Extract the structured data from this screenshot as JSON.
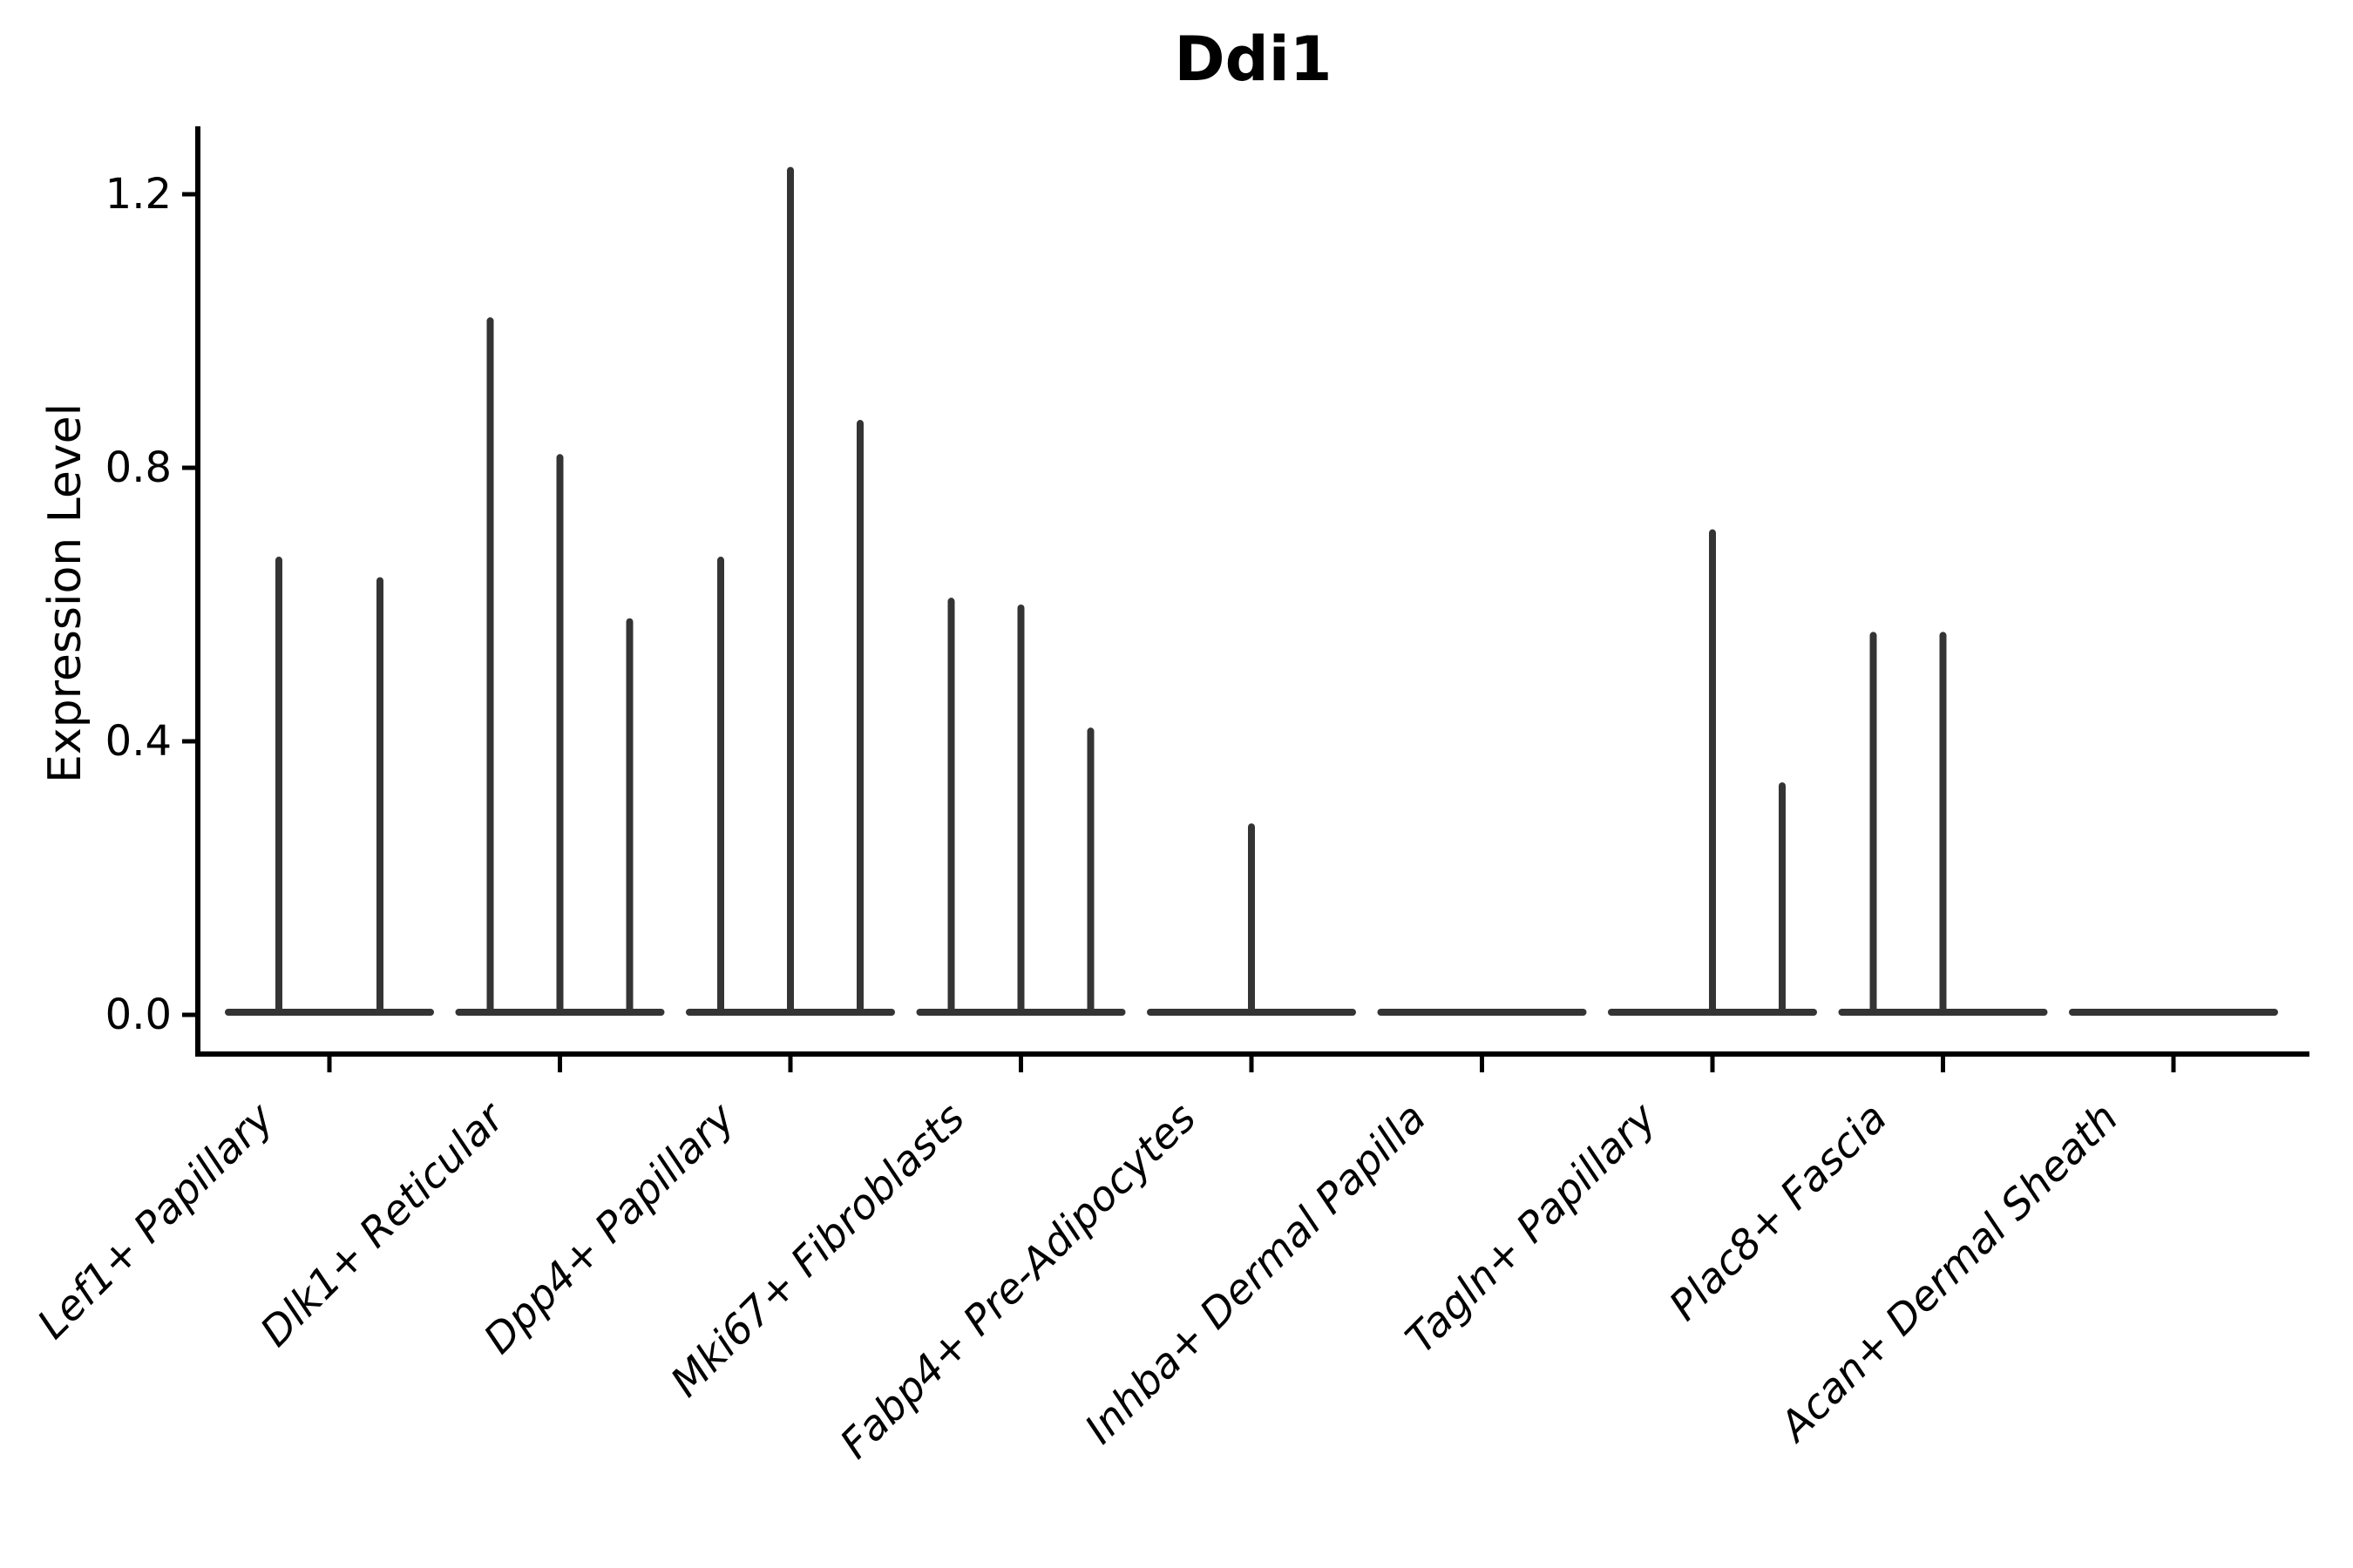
{
  "figure": {
    "background": "#ffffff"
  },
  "colors": {
    "violin_line": "#343434",
    "axis": "#000000",
    "text": "#000000"
  },
  "chart_data": {
    "type": "violin",
    "title": "Ddi1",
    "xlabel": "",
    "ylabel": "Expression Level",
    "ylim": [
      0,
      1.3
    ],
    "yticks": [
      0.0,
      0.4,
      0.8,
      1.2
    ],
    "ytick_labels": [
      "0.0",
      "0.4",
      "0.8",
      "1.2"
    ],
    "grid": false,
    "legend_position": "none",
    "xtick_rotation_deg": 45,
    "categories": [
      "Lef1+ Papillary",
      "Dlk1+ Reticular",
      "Dpp4+ Papillary",
      "Mki67+ Fibroblasts",
      "Fabp4+ Pre-Adipocytes",
      "Inhba+ Dermal Papilla",
      "Tagln+ Papillary",
      "Plac8+ Fascia",
      "Acan+ Dermal Sheath"
    ],
    "series": [
      {
        "category": "Lef1+ Papillary",
        "spikes": [
          {
            "dx": -58,
            "max_expression": 0.67
          },
          {
            "dx": 58,
            "max_expression": 0.64
          }
        ]
      },
      {
        "category": "Dlk1+ Reticular",
        "spikes": [
          {
            "dx": -80,
            "max_expression": 1.02
          },
          {
            "dx": 0,
            "max_expression": 0.82
          },
          {
            "dx": 80,
            "max_expression": 0.58
          }
        ]
      },
      {
        "category": "Dpp4+ Papillary",
        "spikes": [
          {
            "dx": -80,
            "max_expression": 0.67
          },
          {
            "dx": 0,
            "max_expression": 1.24
          },
          {
            "dx": 80,
            "max_expression": 0.87
          }
        ]
      },
      {
        "category": "Mki67+ Fibroblasts",
        "spikes": [
          {
            "dx": -80,
            "max_expression": 0.61
          },
          {
            "dx": 0,
            "max_expression": 0.6
          },
          {
            "dx": 80,
            "max_expression": 0.42
          }
        ]
      },
      {
        "category": "Fabp4+ Pre-Adipocytes",
        "spikes": [
          {
            "dx": 0,
            "max_expression": 0.28
          }
        ]
      },
      {
        "category": "Inhba+ Dermal Papilla",
        "spikes": []
      },
      {
        "category": "Tagln+ Papillary",
        "spikes": [
          {
            "dx": 0,
            "max_expression": 0.71
          },
          {
            "dx": 80,
            "max_expression": 0.34
          }
        ]
      },
      {
        "category": "Plac8+ Fascia",
        "spikes": [
          {
            "dx": -80,
            "max_expression": 0.56
          },
          {
            "dx": 0,
            "max_expression": 0.56
          }
        ]
      },
      {
        "category": "Acan+ Dermal Sheath",
        "spikes": []
      }
    ]
  }
}
